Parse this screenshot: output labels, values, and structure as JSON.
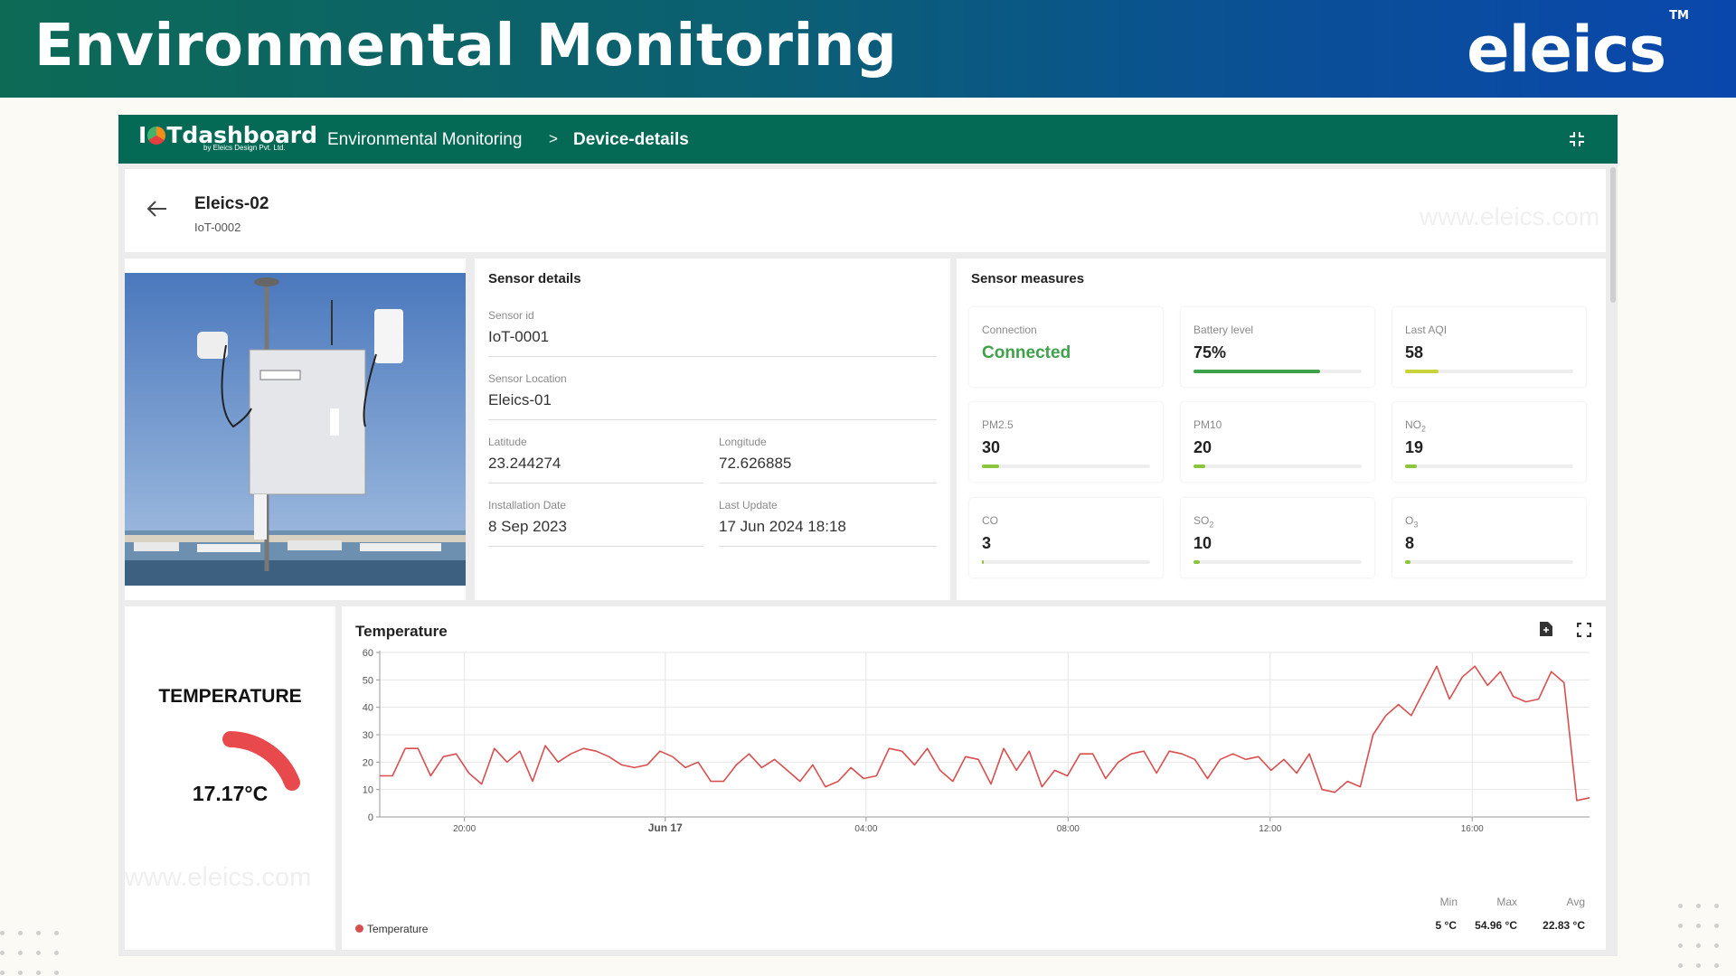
{
  "slide": {
    "title": "Environmental Monitoring",
    "brand": "eleics",
    "brand_tm": "TM"
  },
  "topbar": {
    "logo_text_left": "I",
    "logo_text_right": "Tdashboard",
    "logo_sub": "by Eleics Design Pvt. Ltd.",
    "breadcrumb": [
      "Environmental Monitoring",
      "Device-details"
    ],
    "breadcrumb_sep": ">"
  },
  "device": {
    "name": "Eleics-02",
    "id": "IoT-0002",
    "watermark": "www.eleics.com"
  },
  "sensor_details": {
    "title": "Sensor details",
    "sensor_id_label": "Sensor id",
    "sensor_id": "IoT-0001",
    "location_label": "Sensor Location",
    "location": "Eleics-01",
    "latitude_label": "Latitude",
    "latitude": "23.244274",
    "longitude_label": "Longitude",
    "longitude": "72.626885",
    "install_label": "Installation Date",
    "install_date": "8 Sep 2023",
    "update_label": "Last Update",
    "last_update": "17 Jun 2024 18:18"
  },
  "sensor_measures": {
    "title": "Sensor measures",
    "tiles": [
      {
        "label": "Connection",
        "sub": "",
        "value": "Connected",
        "fill_fraction": null,
        "fill_color": ""
      },
      {
        "label": "Battery level",
        "sub": "",
        "value": "75%",
        "fill_fraction": 0.75,
        "fill_color": "#3ea24a"
      },
      {
        "label": "Last AQI",
        "sub": "",
        "value": "58",
        "fill_fraction": 0.2,
        "fill_color": "#c9d43a"
      },
      {
        "label": "PM2.5",
        "sub": "",
        "value": "30",
        "fill_fraction": 0.1,
        "fill_color": "#8cc43a"
      },
      {
        "label": "PM10",
        "sub": "",
        "value": "20",
        "fill_fraction": 0.07,
        "fill_color": "#8cc43a"
      },
      {
        "label": "NO",
        "sub": "2",
        "value": "19",
        "fill_fraction": 0.07,
        "fill_color": "#8cc43a"
      },
      {
        "label": "CO",
        "sub": "",
        "value": "3",
        "fill_fraction": 0.01,
        "fill_color": "#8cc43a"
      },
      {
        "label": "SO",
        "sub": "2",
        "value": "10",
        "fill_fraction": 0.04,
        "fill_color": "#8cc43a"
      },
      {
        "label": "O",
        "sub": "3",
        "value": "8",
        "fill_fraction": 0.03,
        "fill_color": "#8cc43a"
      }
    ]
  },
  "gauge": {
    "title": "TEMPERATURE",
    "value_text": "17.17°C",
    "color": "#e8494c"
  },
  "chart_panel": {
    "title": "Temperature",
    "legend": "Temperature",
    "stats": {
      "min_label": "Min",
      "min": "5 °C",
      "max_label": "Max",
      "max": "54.96 °C",
      "avg_label": "Avg",
      "avg": "22.83 °C"
    }
  },
  "chart_data": {
    "type": "line",
    "title": "Temperature",
    "series": [
      {
        "name": "Temperature",
        "color": "#d94f4f",
        "values": [
          15,
          15,
          25,
          25,
          15,
          22,
          23,
          16,
          12,
          25,
          20,
          24,
          13,
          26,
          20,
          23,
          25,
          24,
          22,
          19,
          18,
          19,
          24,
          22,
          18,
          20,
          13,
          13,
          19,
          23,
          18,
          21,
          17,
          13,
          19,
          11,
          13,
          18,
          14,
          15,
          25,
          24,
          19,
          25,
          17,
          13,
          22,
          21,
          12,
          25,
          17,
          24,
          11,
          17,
          15,
          23,
          23,
          14,
          20,
          23,
          24,
          16,
          24,
          23,
          21,
          14,
          21,
          23,
          21,
          22,
          17,
          21,
          16,
          23,
          10,
          9,
          13,
          11,
          30,
          37,
          41,
          37,
          46,
          55,
          43,
          51,
          55,
          48,
          53,
          44,
          42,
          43,
          53,
          49,
          6,
          7
        ]
      }
    ],
    "x_ticks": [
      "20:00",
      "Jun 17",
      "04:00",
      "08:00",
      "12:00",
      "16:00"
    ],
    "y_ticks": [
      0,
      10,
      20,
      30,
      40,
      50,
      60
    ],
    "ylim": [
      0,
      60
    ],
    "grid": true,
    "legend_position": "bottom-left"
  }
}
